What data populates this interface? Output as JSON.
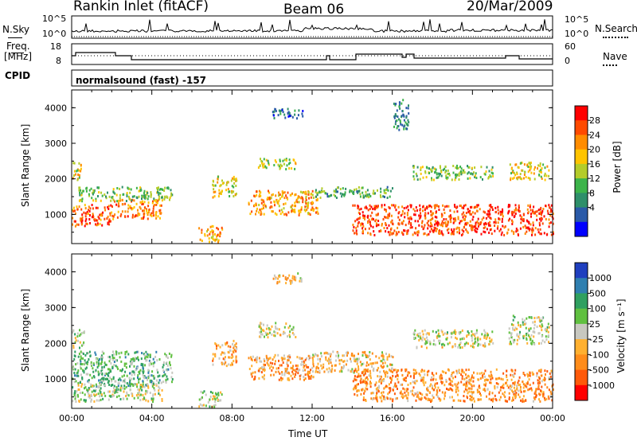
{
  "header": {
    "station": "Rankin Inlet (fitACF)",
    "beam": "Beam 06",
    "date": "20/Mar/2009"
  },
  "strips": {
    "nsky_label": "N.Sky",
    "nsky_ticks": [
      "10^5",
      "10^0"
    ],
    "nsearch_label": "N.Search",
    "nsearch_ticks": [
      "10^5",
      "10^0"
    ],
    "freq_label": "Freq.",
    "freq_unit": "[MHz]",
    "freq_ticks": [
      "18",
      "8"
    ],
    "nave_label": "Nave",
    "nave_ticks": [
      "60",
      "0"
    ],
    "cpid_label": "CPID",
    "cpid_text": "normalsound (fast) -157"
  },
  "axes": {
    "ylabel": "Slant Range [km]",
    "xlabel": "Time UT",
    "xticks": [
      "00:00",
      "04:00",
      "08:00",
      "12:00",
      "16:00",
      "20:00",
      "00:00"
    ],
    "yticks": [
      "1000",
      "2000",
      "3000",
      "4000"
    ]
  },
  "colorbars": {
    "power": {
      "label": "Power [dB]",
      "ticks": [
        "28",
        "24",
        "20",
        "16",
        "12",
        "8",
        "4"
      ],
      "colors": [
        "#ff0000",
        "#ff4a00",
        "#ff8c00",
        "#ffc400",
        "#b4cc2a",
        "#3cb44a",
        "#2e8f6a",
        "#2a5aa8",
        "#0000ff"
      ]
    },
    "velocity": {
      "label": "Velocity [m s⁻¹]",
      "ticks": [
        "1000",
        "500",
        "100",
        "25",
        "-25",
        "-100",
        "-500",
        "-1000"
      ],
      "colors": [
        "#1f3fbf",
        "#2f7fb0",
        "#2fa060",
        "#60c040",
        "#c8c8c0",
        "#ffb030",
        "#ff8c1a",
        "#ff5a0a",
        "#ff0000"
      ]
    }
  },
  "chart_data": [
    {
      "type": "heatmap",
      "title": "",
      "xlabel": "Time UT",
      "ylabel": "Slant Range [km]",
      "xlim": [
        0,
        24
      ],
      "ylim": [
        180,
        4500
      ],
      "colorbar": "Power [dB]",
      "colorbar_range": [
        0,
        32
      ],
      "cells": [
        {
          "x": [
            0.0,
            2.0
          ],
          "y": [
            700,
            1300
          ],
          "v": 26
        },
        {
          "x": [
            2.0,
            4.5
          ],
          "y": [
            900,
            1450
          ],
          "v": 24
        },
        {
          "x": [
            0.3,
            5.0
          ],
          "y": [
            1400,
            1800
          ],
          "v": 14
        },
        {
          "x": [
            0.0,
            0.5
          ],
          "y": [
            2000,
            2500
          ],
          "v": 18
        },
        {
          "x": [
            6.3,
            7.5
          ],
          "y": [
            250,
            700
          ],
          "v": 22
        },
        {
          "x": [
            7.0,
            8.2
          ],
          "y": [
            1500,
            2100
          ],
          "v": 18
        },
        {
          "x": [
            8.8,
            12.3
          ],
          "y": [
            1000,
            1700
          ],
          "v": 22
        },
        {
          "x": [
            9.2,
            11.2
          ],
          "y": [
            2300,
            2600
          ],
          "v": 16
        },
        {
          "x": [
            10.0,
            11.5
          ],
          "y": [
            3700,
            4000
          ],
          "v": 6
        },
        {
          "x": [
            12.0,
            16.0
          ],
          "y": [
            1500,
            1800
          ],
          "v": 12
        },
        {
          "x": [
            14.0,
            24.0
          ],
          "y": [
            450,
            1300
          ],
          "v": 27
        },
        {
          "x": [
            17.0,
            21.0
          ],
          "y": [
            2000,
            2400
          ],
          "v": 14
        },
        {
          "x": [
            21.8,
            23.8
          ],
          "y": [
            2000,
            2500
          ],
          "v": 18
        },
        {
          "x": [
            16.0,
            16.8
          ],
          "y": [
            3400,
            4300
          ],
          "v": 8
        }
      ]
    },
    {
      "type": "heatmap",
      "title": "",
      "xlabel": "Time UT",
      "ylabel": "Slant Range [km]",
      "xlim": [
        0,
        24
      ],
      "ylim": [
        180,
        4500
      ],
      "colorbar": "Velocity [m s-1]",
      "colorbar_range": [
        -1000,
        1000
      ],
      "cells": [
        {
          "x": [
            0.0,
            5.0
          ],
          "y": [
            800,
            1800
          ],
          "v": 300
        },
        {
          "x": [
            0.0,
            4.5
          ],
          "y": [
            400,
            900
          ],
          "v": 100
        },
        {
          "x": [
            0.0,
            0.6
          ],
          "y": [
            1900,
            2400
          ],
          "v": 0
        },
        {
          "x": [
            6.3,
            7.5
          ],
          "y": [
            250,
            700
          ],
          "v": 100
        },
        {
          "x": [
            7.0,
            8.2
          ],
          "y": [
            1400,
            2100
          ],
          "v": -300
        },
        {
          "x": [
            8.8,
            12.3
          ],
          "y": [
            1000,
            1700
          ],
          "v": -350
        },
        {
          "x": [
            9.3,
            11.2
          ],
          "y": [
            2200,
            2600
          ],
          "v": 0
        },
        {
          "x": [
            10.0,
            11.5
          ],
          "y": [
            3700,
            4000
          ],
          "v": -200
        },
        {
          "x": [
            12.0,
            16.0
          ],
          "y": [
            1200,
            1800
          ],
          "v": -200
        },
        {
          "x": [
            14.0,
            24.0
          ],
          "y": [
            400,
            1300
          ],
          "v": -400
        },
        {
          "x": [
            17.0,
            21.0
          ],
          "y": [
            1900,
            2400
          ],
          "v": 0
        },
        {
          "x": [
            21.8,
            23.8
          ],
          "y": [
            2000,
            2600
          ],
          "v": 0
        },
        {
          "x": [
            22.0,
            23.5
          ],
          "y": [
            2600,
            2800
          ],
          "v": 100
        }
      ]
    }
  ]
}
